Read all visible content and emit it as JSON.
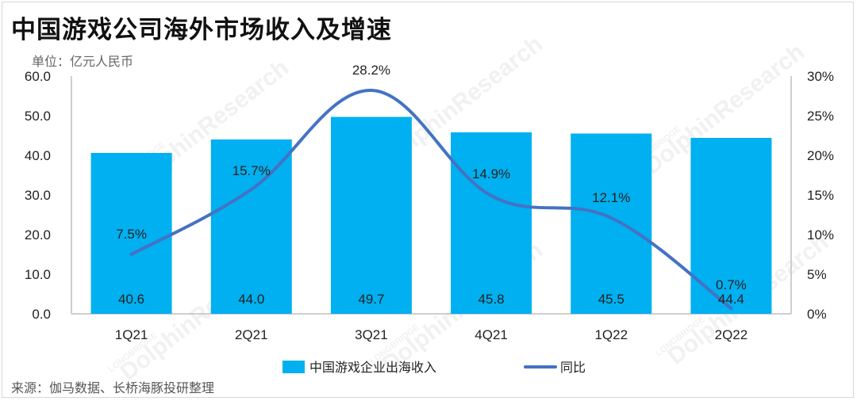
{
  "title": "中国游戏公司海外市场收入及增速",
  "unit_label": "单位：亿元人民币",
  "source": "来源：伽马数据、长桥海豚投研整理",
  "watermark": {
    "brand": "LONGBRIDGE",
    "name": "DolphinResearch"
  },
  "colors": {
    "bar": "#00b0f0",
    "line": "#4472c4",
    "axis": "#bfbfbf"
  },
  "chart_data": {
    "type": "bar",
    "categories": [
      "1Q21",
      "2Q21",
      "3Q21",
      "4Q21",
      "1Q22",
      "2Q22"
    ],
    "series": [
      {
        "name": "中国游戏企业出海收入",
        "type": "bar",
        "axis": "left",
        "values": [
          40.6,
          44.0,
          49.7,
          45.8,
          45.5,
          44.4
        ],
        "labels": [
          "40.6",
          "44.0",
          "49.7",
          "45.8",
          "45.5",
          "44.4"
        ]
      },
      {
        "name": "同比",
        "type": "line",
        "axis": "right",
        "values": [
          7.5,
          15.7,
          28.2,
          14.9,
          12.1,
          0.7
        ],
        "labels": [
          "7.5%",
          "15.7%",
          "28.2%",
          "14.9%",
          "12.1%",
          "0.7%"
        ]
      }
    ],
    "y_left": {
      "min": 0,
      "max": 60,
      "ticks": [
        "0.0",
        "10.0",
        "20.0",
        "30.0",
        "40.0",
        "50.0",
        "60.0"
      ]
    },
    "y_right": {
      "min": 0,
      "max": 30,
      "ticks": [
        "0%",
        "5%",
        "10%",
        "15%",
        "20%",
        "25%",
        "30%"
      ]
    },
    "grid": false,
    "legend": "bottom"
  }
}
